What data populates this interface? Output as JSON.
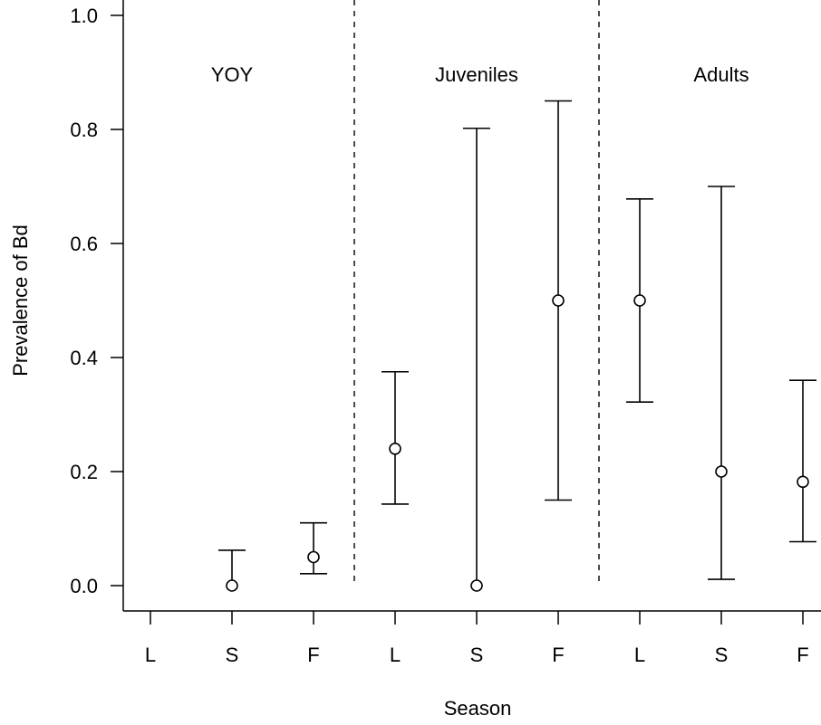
{
  "chart_data": {
    "type": "scatter",
    "title": "",
    "xlabel": "Season",
    "ylabel": "Prevalence of Bd",
    "ylim": [
      0,
      1.0
    ],
    "yticks": [
      "0.0",
      "0.2",
      "0.4",
      "0.6",
      "0.8",
      "1.0"
    ],
    "ytick_values": [
      0,
      0.2,
      0.4,
      0.6,
      0.8,
      1.0
    ],
    "grid": false,
    "groups": [
      {
        "label": "YOY",
        "seasons": [
          "L",
          "S",
          "F"
        ],
        "points": [
          {
            "season": "L",
            "estimate": null,
            "lower": null,
            "upper": null
          },
          {
            "season": "S",
            "estimate": 0.0,
            "lower": 0.0,
            "upper": 0.062
          },
          {
            "season": "F",
            "estimate": 0.05,
            "lower": 0.021,
            "upper": 0.11
          }
        ]
      },
      {
        "label": "Juveniles",
        "seasons": [
          "L",
          "S",
          "F"
        ],
        "points": [
          {
            "season": "L",
            "estimate": 0.24,
            "lower": 0.143,
            "upper": 0.375
          },
          {
            "season": "S",
            "estimate": 0.0,
            "lower": 0.0,
            "upper": 0.802
          },
          {
            "season": "F",
            "estimate": 0.5,
            "lower": 0.15,
            "upper": 0.85
          }
        ]
      },
      {
        "label": "Adults",
        "seasons": [
          "L",
          "S",
          "F"
        ],
        "points": [
          {
            "season": "L",
            "estimate": 0.5,
            "lower": 0.322,
            "upper": 0.678
          },
          {
            "season": "S",
            "estimate": 0.2,
            "lower": 0.011,
            "upper": 0.7
          },
          {
            "season": "F",
            "estimate": 0.182,
            "lower": 0.077,
            "upper": 0.36
          }
        ]
      }
    ]
  }
}
